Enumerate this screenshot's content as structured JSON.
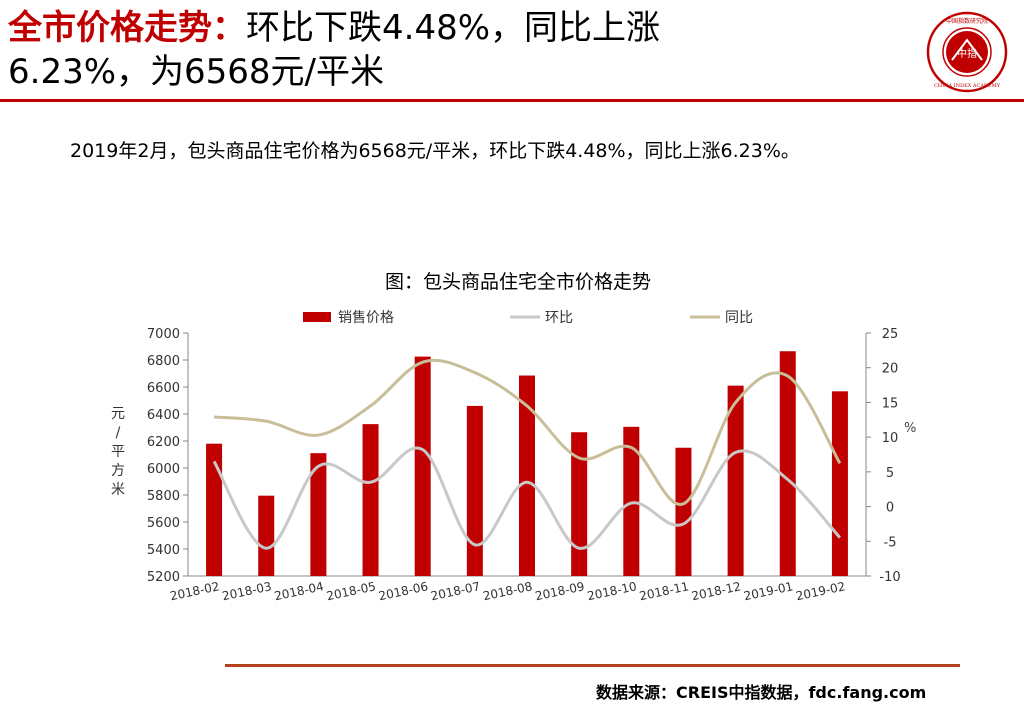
{
  "header": {
    "title_highlight": "全市价格走势：",
    "title_line1_rest": "环比下跌4.48%，同比上涨",
    "title_line2": "6.23%，为6568元/平米"
  },
  "logo": {
    "text": "中指",
    "ring_text": "CHINA INDEX ACADEMY",
    "ring_cn": "中国指数研究院"
  },
  "summary": "2019年2月，包头商品住宅价格为6568元/平米，环比下跌4.48%，同比上涨6.23%。",
  "footer": {
    "source": "数据来源：CREIS中指数据，fdc.fang.com"
  },
  "colors": {
    "accent": "#c00000",
    "bar": "#c00000",
    "mom": "#c8c8c8",
    "yoy": "#c8be98",
    "rule": "#b5411c"
  },
  "chart_data": {
    "type": "bar",
    "title": "图：包头商品住宅全市价格走势",
    "categories": [
      "2018-02",
      "2018-03",
      "2018-04",
      "2018-05",
      "2018-06",
      "2018-07",
      "2018-08",
      "2018-09",
      "2018-10",
      "2018-11",
      "2018-12",
      "2019-01",
      "2019-02"
    ],
    "series": [
      {
        "name": "销售价格",
        "kind": "bar",
        "axis": "left",
        "values": [
          6180,
          5795,
          6110,
          6325,
          6825,
          6460,
          6685,
          6265,
          6305,
          6150,
          6610,
          6865,
          6568
        ]
      },
      {
        "name": "环比",
        "kind": "line",
        "axis": "right",
        "values": [
          6.5,
          -6.0,
          5.8,
          3.5,
          8.2,
          -5.5,
          3.5,
          -6.0,
          0.5,
          -2.5,
          7.8,
          3.9,
          -4.48
        ]
      },
      {
        "name": "同比",
        "kind": "line",
        "axis": "right",
        "values": [
          12.9,
          12.3,
          10.3,
          14.5,
          20.8,
          19.3,
          14.5,
          7.0,
          8.5,
          0.4,
          15.0,
          18.8,
          6.23
        ]
      }
    ],
    "ylabel": "元/平方米",
    "y2label": "%",
    "ylim": [
      5200,
      7000
    ],
    "yticks": [
      5200,
      5400,
      5600,
      5800,
      6000,
      6200,
      6400,
      6600,
      6800,
      7000
    ],
    "y2lim": [
      -10,
      25
    ],
    "y2ticks": [
      -10,
      -5,
      0,
      5,
      10,
      15,
      20,
      25
    ],
    "grid": false,
    "legend": "top"
  }
}
